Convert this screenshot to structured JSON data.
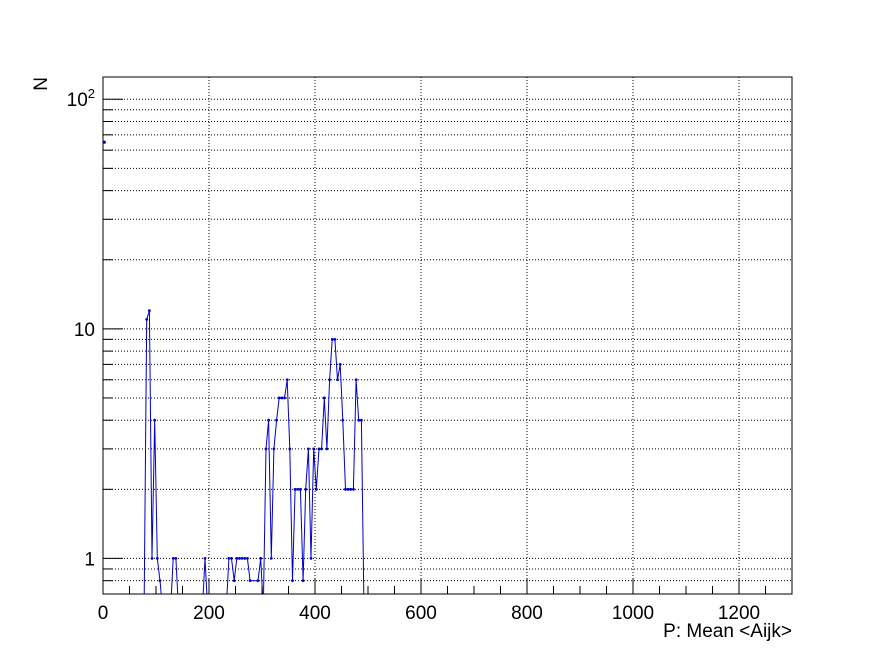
{
  "chart_data": {
    "type": "line",
    "xlabel": "P: Mean <Aijk>",
    "ylabel": "N",
    "xlim": [
      0,
      1300
    ],
    "ylim": [
      0.7,
      125
    ],
    "y_scale": "log",
    "grid": true,
    "legend": "none",
    "x_ticks": [
      {
        "value": 0,
        "label": "0"
      },
      {
        "value": 200,
        "label": "200"
      },
      {
        "value": 400,
        "label": "400"
      },
      {
        "value": 600,
        "label": "600"
      },
      {
        "value": 800,
        "label": "800"
      },
      {
        "value": 1000,
        "label": "1000"
      },
      {
        "value": 1200,
        "label": "1200"
      }
    ],
    "y_ticks": [
      {
        "value": 1,
        "label": "1"
      },
      {
        "value": 10,
        "label": "10"
      },
      {
        "value": 100,
        "base": "10",
        "exp": "2"
      }
    ],
    "series": [
      {
        "color": "#0000cc",
        "points": [
          [
            2.5,
            65
          ],
          [
            77.5,
            0.6
          ],
          [
            82.5,
            11
          ],
          [
            87.5,
            12
          ],
          [
            92.5,
            1
          ],
          [
            97.5,
            4
          ],
          [
            102.5,
            1
          ],
          [
            107.5,
            0.8
          ],
          [
            112.5,
            0.6
          ],
          [
            127.5,
            0.6
          ],
          [
            132.5,
            1
          ],
          [
            137.5,
            1
          ],
          [
            142.5,
            0.6
          ],
          [
            187.5,
            0.6
          ],
          [
            192.5,
            1
          ],
          [
            197.5,
            0.6
          ],
          [
            232.5,
            0.6
          ],
          [
            237.5,
            1
          ],
          [
            242.5,
            1
          ],
          [
            247.5,
            0.8
          ],
          [
            252.5,
            1
          ],
          [
            257.5,
            1
          ],
          [
            262.5,
            1
          ],
          [
            267.5,
            1
          ],
          [
            272.5,
            1
          ],
          [
            277.5,
            0.8
          ],
          [
            292.5,
            0.8
          ],
          [
            297.5,
            1
          ],
          [
            302.5,
            0.6
          ],
          [
            307.5,
            3
          ],
          [
            312.5,
            4
          ],
          [
            317.5,
            1
          ],
          [
            322.5,
            3
          ],
          [
            327.5,
            4
          ],
          [
            332.5,
            5
          ],
          [
            337.5,
            5
          ],
          [
            342.5,
            5
          ],
          [
            347.5,
            6
          ],
          [
            352.5,
            3
          ],
          [
            357.5,
            0.8
          ],
          [
            362.5,
            2
          ],
          [
            367.5,
            2
          ],
          [
            372.5,
            2
          ],
          [
            377.5,
            0.8
          ],
          [
            382.5,
            2
          ],
          [
            387.5,
            3
          ],
          [
            392.5,
            1
          ],
          [
            397.5,
            3
          ],
          [
            402.5,
            2
          ],
          [
            407.5,
            3
          ],
          [
            412.5,
            3
          ],
          [
            417.5,
            5
          ],
          [
            422.5,
            3
          ],
          [
            427.5,
            6
          ],
          [
            432.5,
            9
          ],
          [
            437.5,
            9
          ],
          [
            442.5,
            6
          ],
          [
            447.5,
            7
          ],
          [
            452.5,
            4
          ],
          [
            457.5,
            2
          ],
          [
            462.5,
            2
          ],
          [
            467.5,
            2
          ],
          [
            472.5,
            2
          ],
          [
            477.5,
            6
          ],
          [
            482.5,
            4
          ],
          [
            487.5,
            4
          ],
          [
            492.5,
            0.6
          ]
        ]
      }
    ]
  }
}
